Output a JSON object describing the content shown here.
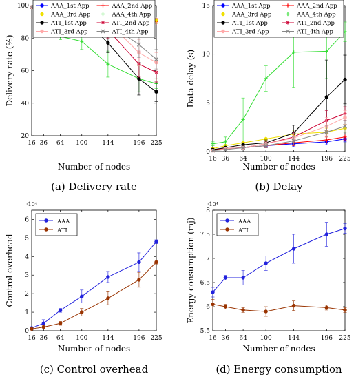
{
  "chart_data": [
    {
      "id": "a",
      "type": "line",
      "caption": "(a) Delivery rate",
      "xlabel": "Number of nodes",
      "ylabel": "Delivery rate (%)",
      "x": [
        16,
        36,
        64,
        100,
        144,
        196,
        225
      ],
      "xlim": [
        16,
        225
      ],
      "ylim": [
        20,
        100
      ],
      "yticks": [
        20,
        40,
        60,
        80,
        100
      ],
      "grid": false,
      "legend_position": "top",
      "series": [
        {
          "name": "AAA_1st App",
          "color": "#0000ff",
          "marker": "circle",
          "values": [
            99,
            99,
            98,
            97,
            94,
            91,
            91
          ],
          "errors": [
            0,
            0,
            1,
            1,
            2,
            2,
            2
          ]
        },
        {
          "name": "AAA_2nd App",
          "color": "#ff0000",
          "marker": "plus",
          "values": [
            99,
            99,
            98,
            96,
            93,
            90,
            90
          ],
          "errors": [
            0,
            0,
            1,
            1,
            2,
            2,
            2
          ]
        },
        {
          "name": "AAA_3rd App",
          "color": "#f0e000",
          "marker": "circle",
          "values": [
            99,
            99,
            98,
            97,
            95,
            93,
            91
          ],
          "errors": [
            0,
            0,
            1,
            1,
            2,
            2,
            2
          ]
        },
        {
          "name": "AAA_4th App",
          "color": "#33dd33",
          "marker": "plus",
          "values": [
            99,
            98,
            81,
            78,
            64,
            55,
            52
          ],
          "errors": [
            0,
            1,
            2,
            5,
            8,
            8,
            3
          ]
        },
        {
          "name": "ATI_1st App",
          "color": "#000000",
          "marker": "circle",
          "values": [
            99,
            99,
            97,
            93,
            77,
            55,
            47
          ],
          "errors": [
            0,
            0,
            1,
            2,
            6,
            10,
            6
          ]
        },
        {
          "name": "ATI_2nd App",
          "color": "#cc0033",
          "marker": "star",
          "values": [
            99,
            99,
            97,
            94,
            85,
            64,
            59
          ],
          "errors": [
            0,
            0,
            1,
            2,
            5,
            8,
            6
          ]
        },
        {
          "name": "ATI_3rd App",
          "color": "#ffaaaa",
          "marker": "circle",
          "values": [
            99,
            99,
            98,
            96,
            90,
            71,
            65
          ],
          "errors": [
            0,
            0,
            1,
            2,
            5,
            8,
            6
          ]
        },
        {
          "name": "ATI_4th App",
          "color": "#888888",
          "marker": "x",
          "values": [
            99,
            99,
            98,
            96,
            89,
            76,
            67
          ],
          "errors": [
            0,
            0,
            1,
            2,
            5,
            8,
            6
          ]
        }
      ]
    },
    {
      "id": "b",
      "type": "line",
      "caption": "(b) Delay",
      "xlabel": "Number of nodes",
      "ylabel": "Data delay (s)",
      "x": [
        16,
        36,
        64,
        100,
        144,
        196,
        225
      ],
      "xlim": [
        16,
        225
      ],
      "ylim": [
        0,
        15
      ],
      "yticks": [
        0,
        5,
        10,
        15
      ],
      "grid": false,
      "legend_position": "top",
      "series": [
        {
          "name": "AAA_1st App",
          "color": "#0000ff",
          "marker": "circle",
          "values": [
            0.2,
            0.3,
            0.4,
            0.6,
            0.8,
            1.0,
            1.3
          ],
          "errors": [
            0.1,
            0.1,
            0.1,
            0.2,
            0.3,
            0.3,
            0.3
          ]
        },
        {
          "name": "AAA_2nd App",
          "color": "#ff0000",
          "marker": "plus",
          "values": [
            0.2,
            0.3,
            0.4,
            0.6,
            0.9,
            1.2,
            1.5
          ],
          "errors": [
            0.1,
            0.1,
            0.1,
            0.2,
            0.3,
            0.3,
            0.3
          ]
        },
        {
          "name": "AAA_3rd App",
          "color": "#f0e000",
          "marker": "circle",
          "values": [
            0.3,
            0.6,
            0.9,
            1.3,
            1.8,
            2.0,
            2.4
          ],
          "errors": [
            0.1,
            0.1,
            0.2,
            0.3,
            0.4,
            0.4,
            0.4
          ]
        },
        {
          "name": "AAA_4th App",
          "color": "#33dd33",
          "marker": "plus",
          "values": [
            0.8,
            1.0,
            3.3,
            7.5,
            10.2,
            10.3,
            12.3
          ],
          "errors": [
            0.2,
            0.5,
            2.2,
            1.3,
            3.6,
            2.8,
            1.0
          ]
        },
        {
          "name": "ATI_1st App",
          "color": "#000000",
          "marker": "circle",
          "values": [
            0.2,
            0.4,
            0.7,
            0.9,
            1.9,
            5.6,
            7.4
          ],
          "errors": [
            0.1,
            0.1,
            0.2,
            0.3,
            0.8,
            3.8,
            2.5
          ]
        },
        {
          "name": "ATI_2nd App",
          "color": "#cc0033",
          "marker": "star",
          "values": [
            0.1,
            0.3,
            0.4,
            0.8,
            1.5,
            3.2,
            3.9
          ],
          "errors": [
            0.1,
            0.1,
            0.1,
            0.2,
            0.5,
            1.0,
            0.7
          ]
        },
        {
          "name": "ATI_3rd App",
          "color": "#ffaaaa",
          "marker": "circle",
          "values": [
            0.1,
            0.3,
            0.4,
            0.8,
            1.4,
            2.6,
            3.5
          ],
          "errors": [
            0.1,
            0.1,
            0.1,
            0.2,
            0.5,
            0.9,
            0.7
          ]
        },
        {
          "name": "ATI_4th App",
          "color": "#888888",
          "marker": "x",
          "values": [
            0.1,
            0.2,
            0.4,
            0.6,
            1.1,
            2.0,
            2.6
          ],
          "errors": [
            0.1,
            0.1,
            0.1,
            0.2,
            0.4,
            0.7,
            0.6
          ]
        }
      ]
    },
    {
      "id": "c",
      "type": "line",
      "caption": "(c) Control overhead",
      "xlabel": "Number of nodes",
      "ylabel": "Control overhead",
      "multiplier": "·10⁴",
      "x": [
        16,
        36,
        64,
        100,
        144,
        196,
        225
      ],
      "xlim": [
        16,
        225
      ],
      "ylim": [
        0,
        6.5
      ],
      "yticks": [
        0,
        1,
        2,
        3,
        4,
        5,
        6
      ],
      "grid": false,
      "legend_position": "top-left",
      "series": [
        {
          "name": "AAA",
          "color": "#2222dd",
          "marker": "circle",
          "values": [
            0.15,
            0.4,
            1.1,
            1.85,
            2.9,
            3.7,
            4.8
          ],
          "errors": [
            0.05,
            0.2,
            0.1,
            0.35,
            0.3,
            0.5,
            0.1
          ]
        },
        {
          "name": "ATI",
          "color": "#993300",
          "marker": "circle",
          "values": [
            0.1,
            0.2,
            0.4,
            1.0,
            1.75,
            2.75,
            3.7
          ],
          "errors": [
            0.05,
            0.1,
            0.1,
            0.2,
            0.35,
            0.4,
            0.1
          ]
        }
      ]
    },
    {
      "id": "d",
      "type": "line",
      "caption": "(d) Energy consumption",
      "xlabel": "Number of nodes",
      "ylabel": "Energy consumption (mj)",
      "multiplier": "·10⁴",
      "x": [
        16,
        36,
        64,
        100,
        144,
        196,
        225
      ],
      "xlim": [
        16,
        225
      ],
      "ylim": [
        5.5,
        8
      ],
      "yticks": [
        5.5,
        6,
        6.5,
        7,
        7.5,
        8
      ],
      "grid": false,
      "legend_position": "top-left",
      "series": [
        {
          "name": "AAA",
          "color": "#2222dd",
          "marker": "circle",
          "values": [
            6.3,
            6.6,
            6.6,
            6.9,
            7.2,
            7.5,
            7.62
          ],
          "errors": [
            0.1,
            0.05,
            0.15,
            0.15,
            0.3,
            0.25,
            0.1
          ]
        },
        {
          "name": "ATI",
          "color": "#993300",
          "marker": "circle",
          "values": [
            6.05,
            6.0,
            5.93,
            5.9,
            6.02,
            5.98,
            5.93
          ],
          "errors": [
            0.1,
            0.05,
            0.05,
            0.1,
            0.1,
            0.05,
            0.05
          ]
        }
      ]
    }
  ]
}
